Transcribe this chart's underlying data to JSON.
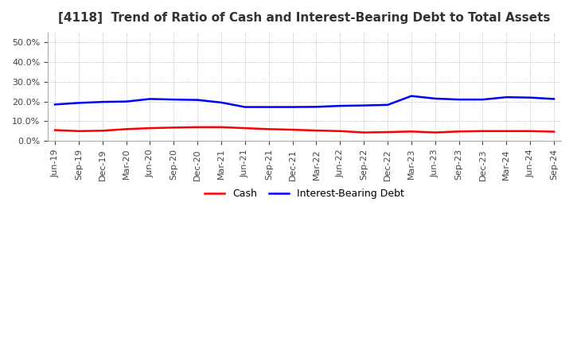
{
  "title": "[4118]  Trend of Ratio of Cash and Interest-Bearing Debt to Total Assets",
  "x_labels": [
    "Jun-19",
    "Sep-19",
    "Dec-19",
    "Mar-20",
    "Jun-20",
    "Sep-20",
    "Dec-20",
    "Mar-21",
    "Jun-21",
    "Sep-21",
    "Dec-21",
    "Mar-22",
    "Jun-22",
    "Sep-22",
    "Dec-22",
    "Mar-23",
    "Jun-23",
    "Sep-23",
    "Dec-23",
    "Mar-24",
    "Jun-24",
    "Sep-24"
  ],
  "cash": [
    0.055,
    0.05,
    0.052,
    0.06,
    0.065,
    0.068,
    0.07,
    0.07,
    0.065,
    0.06,
    0.057,
    0.053,
    0.05,
    0.043,
    0.045,
    0.048,
    0.043,
    0.048,
    0.05,
    0.05,
    0.05,
    0.047
  ],
  "interest_bearing_debt": [
    0.185,
    0.193,
    0.198,
    0.2,
    0.213,
    0.21,
    0.208,
    0.195,
    0.172,
    0.172,
    0.172,
    0.173,
    0.178,
    0.18,
    0.183,
    0.228,
    0.215,
    0.21,
    0.21,
    0.222,
    0.22,
    0.213
  ],
  "cash_color": "#FF0000",
  "debt_color": "#0000FF",
  "background_color": "#FFFFFF",
  "plot_bg_color": "#FFFFFF",
  "grid_color": "#AAAAAA",
  "ylim": [
    0.0,
    0.55
  ],
  "yticks": [
    0.0,
    0.1,
    0.2,
    0.3,
    0.4,
    0.5
  ],
  "legend_cash": "Cash",
  "legend_debt": "Interest-Bearing Debt",
  "title_fontsize": 11,
  "tick_fontsize": 8,
  "line_width": 1.8
}
